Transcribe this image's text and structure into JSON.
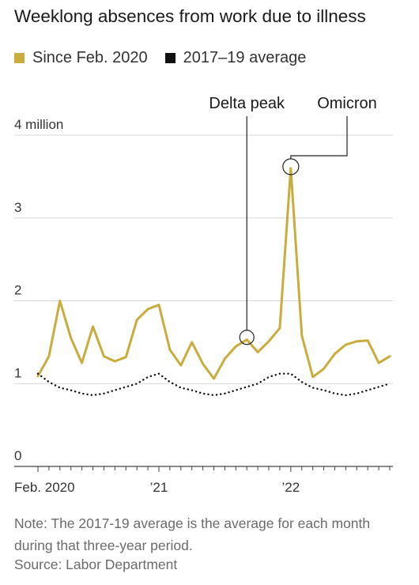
{
  "title": "Weeklong absences from work due to illness",
  "legend": [
    {
      "label": "Since Feb. 2020",
      "color": "#c9ac3b"
    },
    {
      "label": "2017–19 average",
      "color": "#111111"
    }
  ],
  "note": "Note: The 2017-19 average is the average for each month during that three-year period.",
  "source": "Source: Labor Department",
  "chart_data": {
    "type": "line",
    "x": [
      "2020-02",
      "2020-03",
      "2020-04",
      "2020-05",
      "2020-06",
      "2020-07",
      "2020-08",
      "2020-09",
      "2020-10",
      "2020-11",
      "2020-12",
      "2021-01",
      "2021-02",
      "2021-03",
      "2021-04",
      "2021-05",
      "2021-06",
      "2021-07",
      "2021-08",
      "2021-09",
      "2021-10",
      "2021-11",
      "2021-12",
      "2022-01",
      "2022-02",
      "2022-03",
      "2022-04",
      "2022-05",
      "2022-06",
      "2022-07",
      "2022-08",
      "2022-09",
      "2022-10"
    ],
    "x_tick_labels": [
      {
        "x": "2020-02",
        "label": "Feb. 2020"
      },
      {
        "x": "2021-01",
        "label": "’21"
      },
      {
        "x": "2022-01",
        "label": "’22"
      }
    ],
    "ylim": [
      0,
      4
    ],
    "y_ticks": [
      0,
      1,
      2,
      3,
      4
    ],
    "y_tick_labels": [
      "0",
      "1",
      "2",
      "3",
      "4 million"
    ],
    "grid": true,
    "series": [
      {
        "name": "Since Feb. 2020",
        "color": "#c9ac3b",
        "style": "solid",
        "values": [
          1.09,
          1.33,
          2.0,
          1.55,
          1.25,
          1.69,
          1.33,
          1.27,
          1.32,
          1.77,
          1.9,
          1.95,
          1.41,
          1.22,
          1.5,
          1.24,
          1.06,
          1.3,
          1.45,
          1.53,
          1.38,
          1.51,
          1.67,
          3.6,
          1.58,
          1.08,
          1.18,
          1.36,
          1.47,
          1.51,
          1.52,
          1.25,
          1.33
        ]
      },
      {
        "name": "2017–19 average",
        "color": "#111111",
        "style": "dotted",
        "values": [
          1.12,
          1.02,
          0.95,
          0.92,
          0.88,
          0.86,
          0.88,
          0.92,
          0.96,
          1.0,
          1.08,
          1.12,
          1.02,
          0.95,
          0.92,
          0.88,
          0.86,
          0.88,
          0.92,
          0.96,
          1.0,
          1.08,
          1.12,
          1.12,
          1.02,
          0.95,
          0.92,
          0.88,
          0.86,
          0.88,
          0.92,
          0.96,
          1.0
        ]
      }
    ],
    "annotations": [
      {
        "label": "Delta peak",
        "x": "2021-09",
        "y": 1.53
      },
      {
        "label": "Omicron",
        "x": "2022-01",
        "y": 3.6
      }
    ]
  }
}
